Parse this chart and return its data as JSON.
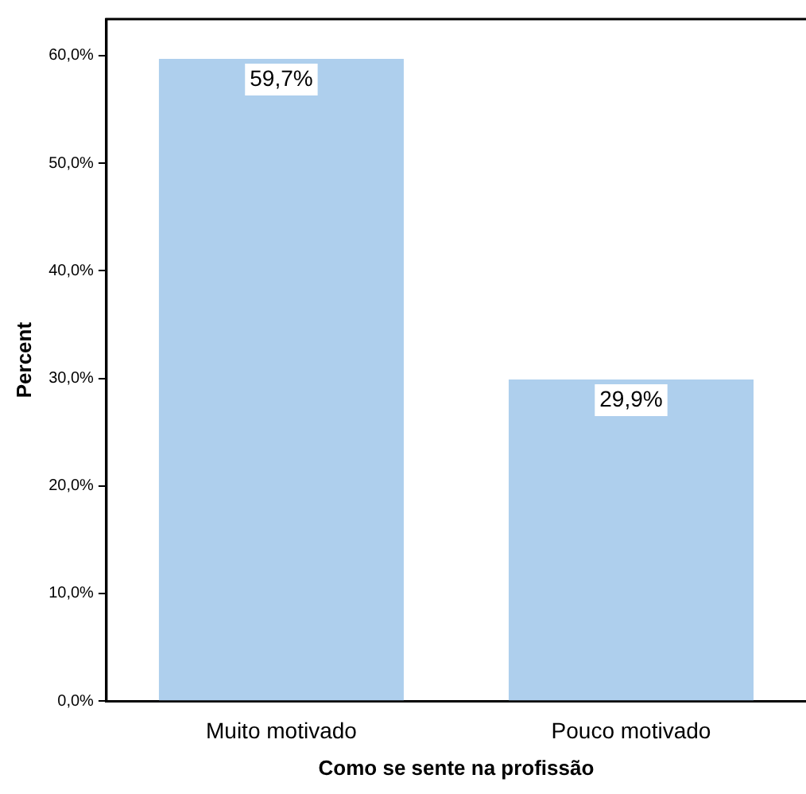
{
  "chart_data": {
    "type": "bar",
    "xlabel": "Como se sente na profissão",
    "ylabel": "Percent",
    "categories": [
      "Muito motivado",
      "Pouco motivado"
    ],
    "values": [
      59.7,
      29.9
    ],
    "value_labels": [
      "59,7%",
      "29,9%"
    ],
    "color": "#aecfed",
    "ylim": [
      0,
      63.4
    ],
    "yticks": [
      {
        "value": 0,
        "label": "0,0%"
      },
      {
        "value": 10,
        "label": "10,0%"
      },
      {
        "value": 20,
        "label": "20,0%"
      },
      {
        "value": 30,
        "label": "30,0%"
      },
      {
        "value": 40,
        "label": "40,0%"
      },
      {
        "value": 50,
        "label": "50,0%"
      },
      {
        "value": 60,
        "label": "60,0%"
      }
    ],
    "grid": false,
    "legend": false
  }
}
